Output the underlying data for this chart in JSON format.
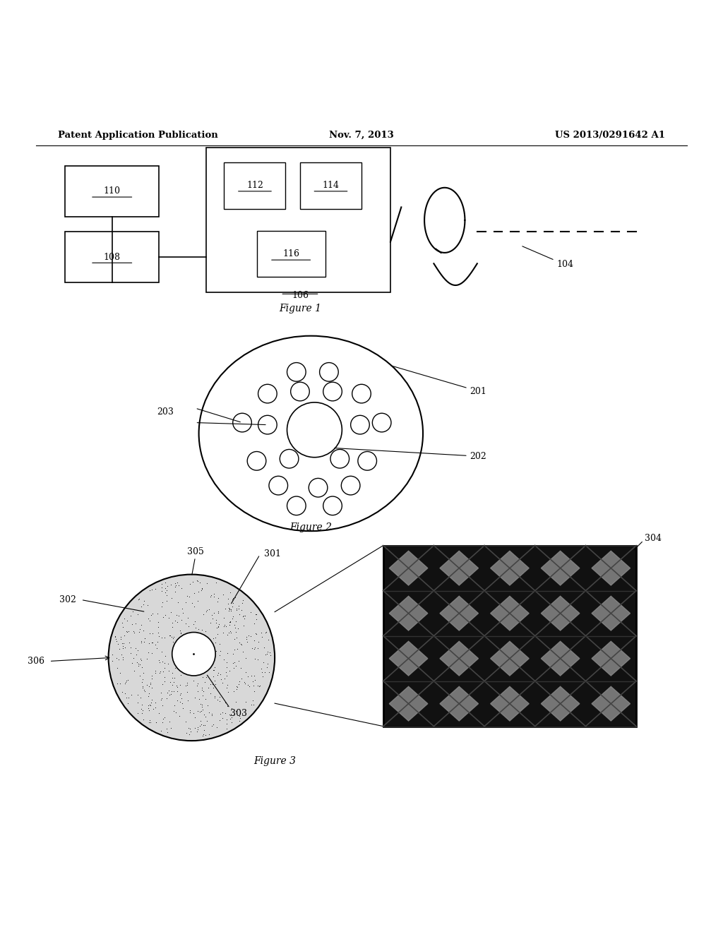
{
  "background_color": "#ffffff",
  "header_left": "Patent Application Publication",
  "header_center": "Nov. 7, 2013",
  "header_right": "US 2013/0291642 A1",
  "fig1_caption": "Figure 1",
  "fig2_caption": "Figure 2",
  "fig3_caption": "Figure 3"
}
